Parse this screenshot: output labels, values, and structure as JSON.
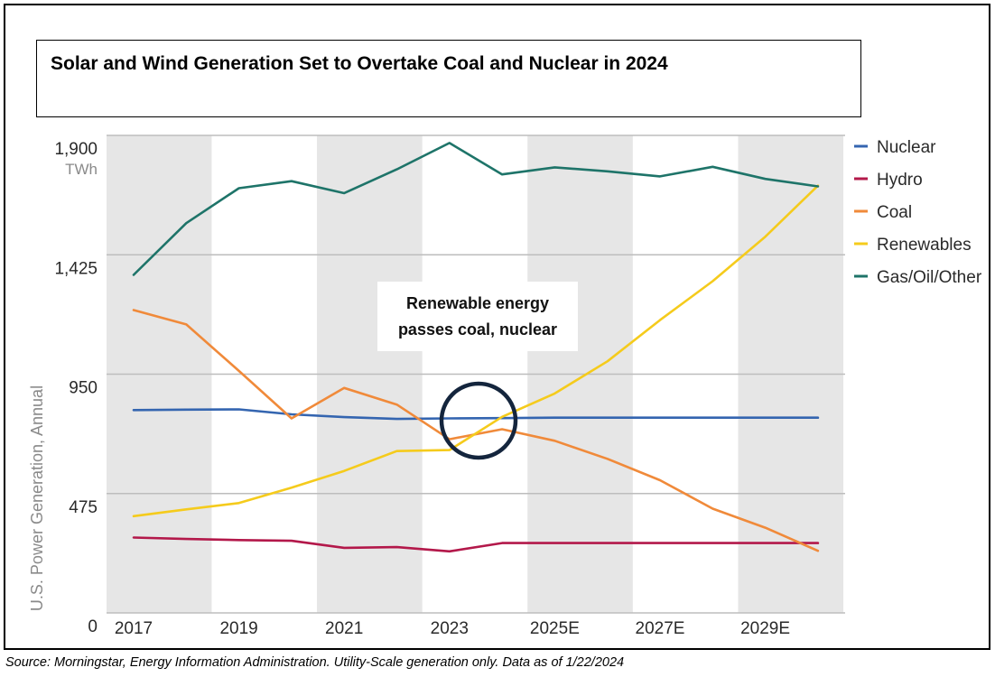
{
  "title": "Solar and Wind Generation Set to Overtake Coal and Nuclear in 2024",
  "source": "Source: Morningstar, Energy Information Administration.  Utility-Scale generation only.  Data as of 1/22/2024",
  "colors": {
    "nuclear": "#3465b0",
    "hydro": "#b3184a",
    "coal": "#f08a3a",
    "renewables": "#f5cb1c",
    "gas": "#1e7469",
    "band": "#e6e6e6",
    "circle": "#14253d"
  },
  "chart_data": {
    "type": "line",
    "x": [
      2017,
      2018,
      2019,
      2020,
      2021,
      2022,
      2023,
      2024,
      2025,
      2026,
      2027,
      2028,
      2029,
      2030
    ],
    "x_tick_values": [
      2017,
      2019,
      2021,
      2023,
      2025,
      2027,
      2029
    ],
    "x_tick_labels": [
      "2017",
      "2019",
      "2021",
      "2023",
      "2025E",
      "2027E",
      "2029E"
    ],
    "y_tick_values": [
      1900,
      1425,
      950,
      475,
      0
    ],
    "y_tick_labels": [
      "1,900",
      "1,425",
      "950",
      "475",
      "0"
    ],
    "y_unit": "TWh",
    "ylabel": "U.S. Power Generation, Annual",
    "ylim": [
      0,
      1900
    ],
    "xlim": [
      2016.75,
      2030.25
    ],
    "grid": true,
    "legend_position": "right",
    "annotation": [
      "Renewable energy",
      "passes coal, nuclear"
    ],
    "series": [
      {
        "name": "Nuclear",
        "color_key": "nuclear",
        "values": [
          807,
          809,
          810,
          790,
          779,
          772,
          774,
          775,
          777,
          777,
          777,
          777,
          777,
          777
        ]
      },
      {
        "name": "Hydro",
        "color_key": "hydro",
        "values": [
          300,
          294,
          290,
          287,
          259,
          262,
          245,
          278,
          278,
          278,
          278,
          278,
          278,
          278
        ]
      },
      {
        "name": "Coal",
        "color_key": "coal",
        "values": [
          1205,
          1148,
          963,
          774,
          895,
          829,
          691,
          731,
          685,
          613,
          528,
          415,
          339,
          247
        ]
      },
      {
        "name": "Renewables",
        "color_key": "renewables",
        "values": [
          385,
          412,
          437,
          498,
          565,
          644,
          648,
          780,
          873,
          1001,
          1165,
          1320,
          1497,
          1700
        ]
      },
      {
        "name": "Gas/Oil/Other",
        "color_key": "gas",
        "values": [
          1345,
          1551,
          1690,
          1718,
          1670,
          1765,
          1870,
          1745,
          1773,
          1757,
          1737,
          1775,
          1727,
          1697
        ]
      }
    ]
  }
}
